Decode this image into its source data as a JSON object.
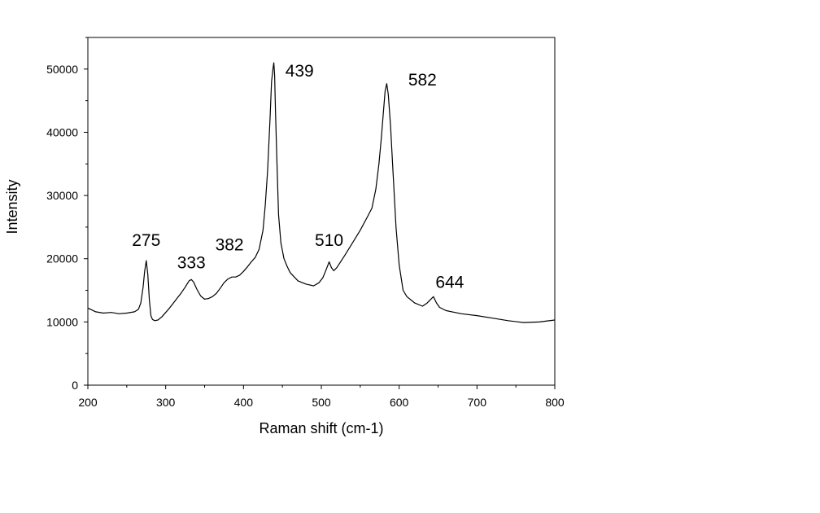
{
  "chart_data": {
    "type": "line",
    "title": "",
    "xlabel": "Raman shift (cm-1)",
    "ylabel": "Intensity",
    "xlim": [
      200,
      800
    ],
    "ylim": [
      0,
      55000
    ],
    "x_ticks": [
      200,
      300,
      400,
      500,
      600,
      700,
      800
    ],
    "y_ticks": [
      0,
      10000,
      20000,
      30000,
      40000,
      50000
    ],
    "x_tick_labels": [
      "200",
      "300",
      "400",
      "500",
      "600",
      "700",
      "800"
    ],
    "y_tick_labels": [
      "0",
      "10000",
      "20000",
      "30000",
      "40000",
      "50000"
    ],
    "grid": false,
    "legend": "none",
    "line_color": "#000000",
    "series": [
      {
        "x": [
          200,
          210,
          220,
          230,
          240,
          250,
          260,
          265,
          268,
          271,
          273,
          275,
          277,
          279,
          281,
          283,
          286,
          290,
          295,
          300,
          305,
          310,
          315,
          320,
          325,
          330,
          333,
          336,
          340,
          345,
          350,
          355,
          360,
          365,
          370,
          375,
          380,
          385,
          390,
          395,
          400,
          405,
          410,
          415,
          420,
          425,
          428,
          431,
          434,
          436,
          438,
          439,
          440,
          441,
          443,
          445,
          448,
          452,
          456,
          460,
          470,
          480,
          490,
          497,
          502,
          506,
          510,
          513,
          516,
          520,
          530,
          540,
          550,
          560,
          565,
          570,
          574,
          577,
          580,
          582,
          584,
          586,
          589,
          592,
          596,
          600,
          605,
          610,
          620,
          630,
          636,
          640,
          644,
          648,
          652,
          660,
          680,
          700,
          720,
          740,
          760,
          780,
          800
        ],
        "y": [
          12200,
          11600,
          11400,
          11500,
          11300,
          11400,
          11600,
          12000,
          13000,
          15500,
          18000,
          19700,
          17500,
          13500,
          11000,
          10400,
          10200,
          10300,
          10800,
          11500,
          12200,
          13000,
          13800,
          14600,
          15500,
          16500,
          16700,
          16300,
          15200,
          14100,
          13600,
          13700,
          14000,
          14500,
          15300,
          16200,
          16800,
          17100,
          17100,
          17400,
          18000,
          18700,
          19500,
          20200,
          21500,
          24500,
          28500,
          34000,
          42000,
          48000,
          50200,
          51000,
          49000,
          43500,
          35000,
          27000,
          22500,
          20000,
          18800,
          17800,
          16500,
          16000,
          15700,
          16200,
          17000,
          18200,
          19500,
          18600,
          18100,
          18600,
          20500,
          22500,
          24500,
          26800,
          28000,
          31000,
          35000,
          39000,
          43500,
          46500,
          47700,
          46000,
          41000,
          34000,
          25000,
          19000,
          15000,
          14000,
          13000,
          12500,
          13000,
          13500,
          14000,
          13000,
          12300,
          11800,
          11300,
          11000,
          10600,
          10200,
          9900,
          10000,
          10300
        ]
      }
    ],
    "annotations": [
      {
        "text": "275",
        "x": 275,
        "y": 22000
      },
      {
        "text": "333",
        "x": 333,
        "y": 18500
      },
      {
        "text": "382",
        "x": 382,
        "y": 21300
      },
      {
        "text": "439",
        "x": 472,
        "y": 48800
      },
      {
        "text": "510",
        "x": 510,
        "y": 22000
      },
      {
        "text": "582",
        "x": 630,
        "y": 47400
      },
      {
        "text": "644",
        "x": 665,
        "y": 15400
      }
    ]
  }
}
